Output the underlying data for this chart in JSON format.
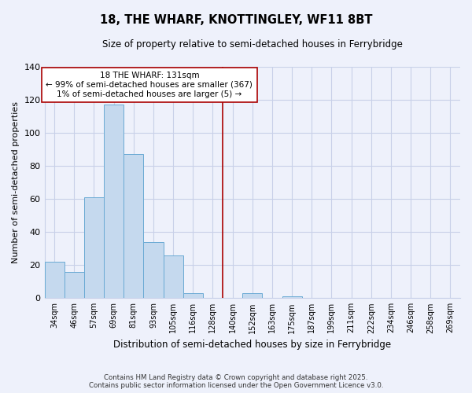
{
  "title": "18, THE WHARF, KNOTTINGLEY, WF11 8BT",
  "subtitle": "Size of property relative to semi-detached houses in Ferrybridge",
  "xlabel": "Distribution of semi-detached houses by size in Ferrybridge",
  "ylabel": "Number of semi-detached properties",
  "bar_labels": [
    "34sqm",
    "46sqm",
    "57sqm",
    "69sqm",
    "81sqm",
    "93sqm",
    "105sqm",
    "116sqm",
    "128sqm",
    "140sqm",
    "152sqm",
    "163sqm",
    "175sqm",
    "187sqm",
    "199sqm",
    "211sqm",
    "222sqm",
    "234sqm",
    "246sqm",
    "258sqm",
    "269sqm"
  ],
  "bar_values": [
    22,
    16,
    61,
    117,
    87,
    34,
    26,
    3,
    0,
    0,
    3,
    0,
    1,
    0,
    0,
    0,
    0,
    0,
    0,
    0,
    0
  ],
  "bar_color": "#c5d9ee",
  "bar_edge_color": "#6aaad4",
  "marker_label": "18 THE WHARF: 131sqm",
  "annotation_line1": "← 99% of semi-detached houses are smaller (367)",
  "annotation_line2": "1% of semi-detached houses are larger (5) →",
  "marker_line_color": "#aa0000",
  "ylim": [
    0,
    140
  ],
  "yticks": [
    0,
    20,
    40,
    60,
    80,
    100,
    120,
    140
  ],
  "footer1": "Contains HM Land Registry data © Crown copyright and database right 2025.",
  "footer2": "Contains public sector information licensed under the Open Government Licence v3.0.",
  "background_color": "#eef1fb",
  "grid_color": "#c8d0e8"
}
